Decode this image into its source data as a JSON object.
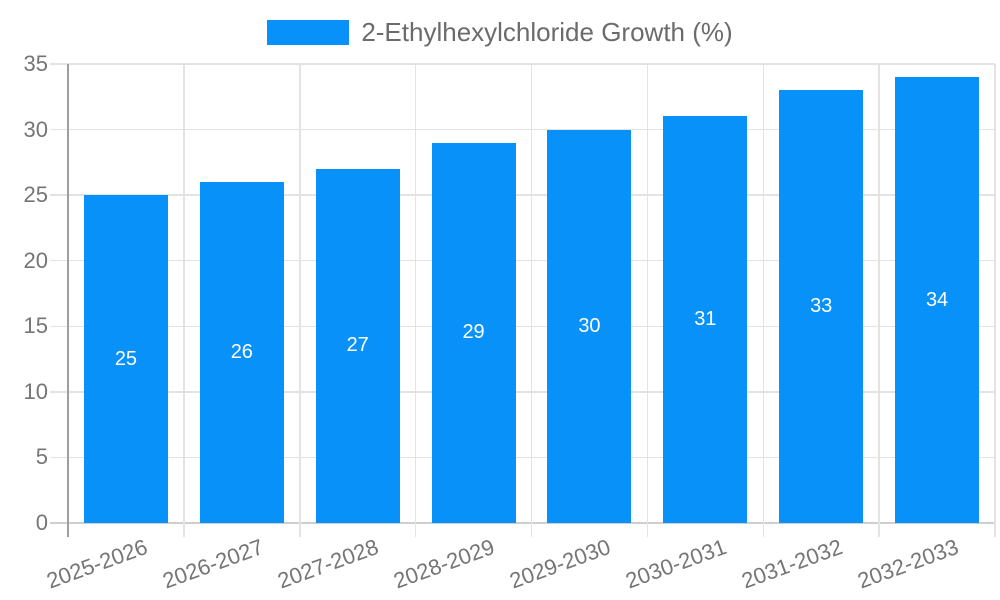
{
  "chart_data": {
    "type": "bar",
    "legend": {
      "label": "2-Ethylhexylchloride Growth (%)",
      "position": "top-center"
    },
    "categories": [
      "2025-2026",
      "2026-2027",
      "2027-2028",
      "2028-2029",
      "2029-2030",
      "2030-2031",
      "2031-2032",
      "2032-2033"
    ],
    "series": [
      {
        "name": "2-Ethylhexylchloride Growth (%)",
        "values": [
          25,
          26,
          27,
          29,
          30,
          31,
          33,
          34
        ]
      }
    ],
    "xlabel": "",
    "ylabel": "",
    "ylim": [
      0,
      35
    ],
    "yticks": [
      0,
      5,
      10,
      15,
      20,
      25,
      30,
      35
    ],
    "grid": true,
    "bar_value_labels_visible": true,
    "colors": {
      "bar": "#0991fa",
      "bar_label": "#ffffff",
      "axis_text": "#757575",
      "legend_text": "#6b6b6b",
      "gridline": "#e3e3e3",
      "axis_line": "#9e9e9e",
      "baseline": "#cfcfcf",
      "background": "#ffffff"
    }
  }
}
